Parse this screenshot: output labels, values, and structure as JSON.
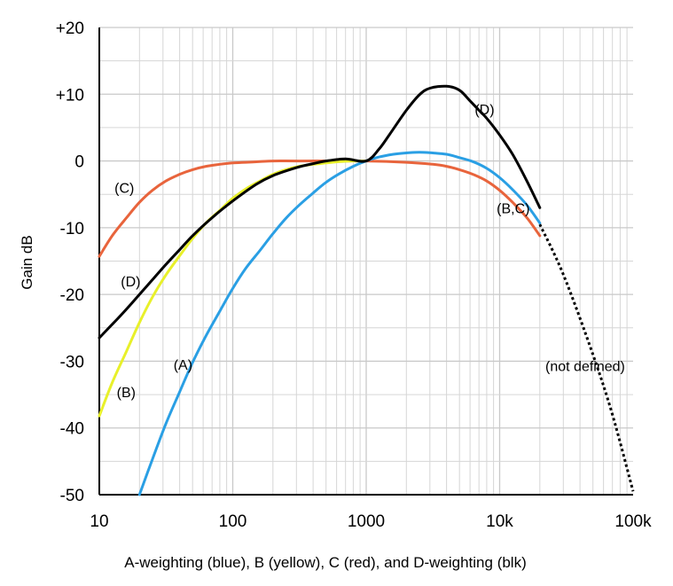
{
  "chart_data": {
    "type": "line",
    "xlabel": "A-weighting (blue), B (yellow), C (red), and D-weighting (blk)",
    "ylabel": "Gain dB",
    "xscale": "log",
    "xlim": [
      10,
      100000
    ],
    "ylim": [
      -50,
      20
    ],
    "grid": true,
    "x_ticks": [
      10,
      100,
      1000,
      10000,
      100000
    ],
    "x_tick_labels": [
      "10",
      "100",
      "1000",
      "10k",
      "100k"
    ],
    "y_ticks": [
      20,
      10,
      0,
      -10,
      -20,
      -30,
      -40,
      -50
    ],
    "y_tick_labels": [
      "+20",
      "+10",
      "0",
      "-10",
      "-20",
      "-30",
      "-40",
      "-50"
    ],
    "series": [
      {
        "key": "A",
        "color": "#2a9fe4",
        "x": [
          20,
          25,
          31.5,
          40,
          50,
          63,
          80,
          100,
          125,
          160,
          200,
          250,
          315,
          400,
          500,
          630,
          800,
          1000,
          1250,
          1600,
          2000,
          2500,
          3150,
          4000,
          5000,
          6300,
          8000,
          10000,
          12500,
          16000,
          20000
        ],
        "y": [
          -50.5,
          -44.7,
          -39.4,
          -34.6,
          -30.2,
          -26.2,
          -22.5,
          -19.1,
          -16.1,
          -13.4,
          -10.9,
          -8.6,
          -6.6,
          -4.8,
          -3.2,
          -1.9,
          -0.8,
          0,
          0.6,
          1.0,
          1.2,
          1.3,
          1.2,
          1.0,
          0.5,
          -0.1,
          -1.1,
          -2.5,
          -4.3,
          -6.6,
          -9.3
        ]
      },
      {
        "key": "B",
        "color": "#e8f02a",
        "x": [
          10,
          12.5,
          16,
          20,
          25,
          31.5,
          40,
          50,
          63,
          80,
          100,
          125,
          160,
          200,
          250,
          315,
          400,
          500,
          630,
          800,
          1000
        ],
        "y": [
          -38.2,
          -33.2,
          -28.5,
          -24.2,
          -20.4,
          -17.1,
          -14.2,
          -11.6,
          -9.3,
          -7.4,
          -5.6,
          -4.2,
          -3.0,
          -2.0,
          -1.3,
          -0.8,
          -0.5,
          -0.3,
          -0.1,
          0,
          0
        ]
      },
      {
        "key": "C",
        "color": "#e8643c",
        "x": [
          10,
          12.5,
          16,
          20,
          25,
          31.5,
          40,
          50,
          63,
          80,
          100,
          125,
          160,
          200,
          315,
          1000,
          2000,
          3150,
          4000,
          5000,
          6300,
          8000,
          10000,
          12500,
          16000,
          20000
        ],
        "y": [
          -14.3,
          -11.2,
          -8.5,
          -6.2,
          -4.4,
          -3.0,
          -2.0,
          -1.3,
          -0.8,
          -0.5,
          -0.3,
          -0.2,
          -0.1,
          0,
          0,
          0,
          -0.2,
          -0.5,
          -0.8,
          -1.3,
          -2.0,
          -3.0,
          -4.4,
          -6.2,
          -8.5,
          -11.2
        ]
      },
      {
        "key": "D",
        "color": "#000000",
        "x": [
          10,
          15,
          20,
          30,
          40,
          50,
          70,
          100,
          150,
          200,
          300,
          400,
          500,
          700,
          1000,
          1250,
          1500,
          2000,
          2500,
          3000,
          4000,
          5000,
          6000,
          7000,
          8000,
          10000,
          12500,
          16000,
          20000
        ],
        "y": [
          -26.5,
          -22.8,
          -20.0,
          -16.0,
          -13.3,
          -11.2,
          -8.5,
          -6.0,
          -3.5,
          -2.2,
          -1.0,
          -0.4,
          0,
          0.3,
          0,
          1.8,
          4.0,
          7.6,
          9.9,
          10.9,
          11.2,
          10.6,
          9.0,
          7.6,
          6.4,
          3.9,
          1.0,
          -3.0,
          -7.0
        ]
      },
      {
        "key": "not-defined",
        "color": "#000000",
        "dashed": true,
        "x": [
          20000,
          30000,
          50000,
          70000,
          100000
        ],
        "y": [
          -9.5,
          -17.0,
          -29.0,
          -38.0,
          -49.5
        ]
      }
    ],
    "annotations": [
      {
        "text": "(D)",
        "x": 6500,
        "y": 7
      },
      {
        "text": "(C)",
        "x": 13,
        "y": -4.8
      },
      {
        "text": "(B,C)",
        "x": 9500,
        "y": -7.8
      },
      {
        "text": "(D)",
        "x": 14.5,
        "y": -18.8
      },
      {
        "text": "(A)",
        "x": 36,
        "y": -31.3
      },
      {
        "text": "(B)",
        "x": 13.5,
        "y": -35.4
      },
      {
        "text": "(not defined)",
        "x": 22000,
        "y": -31.5
      }
    ]
  }
}
